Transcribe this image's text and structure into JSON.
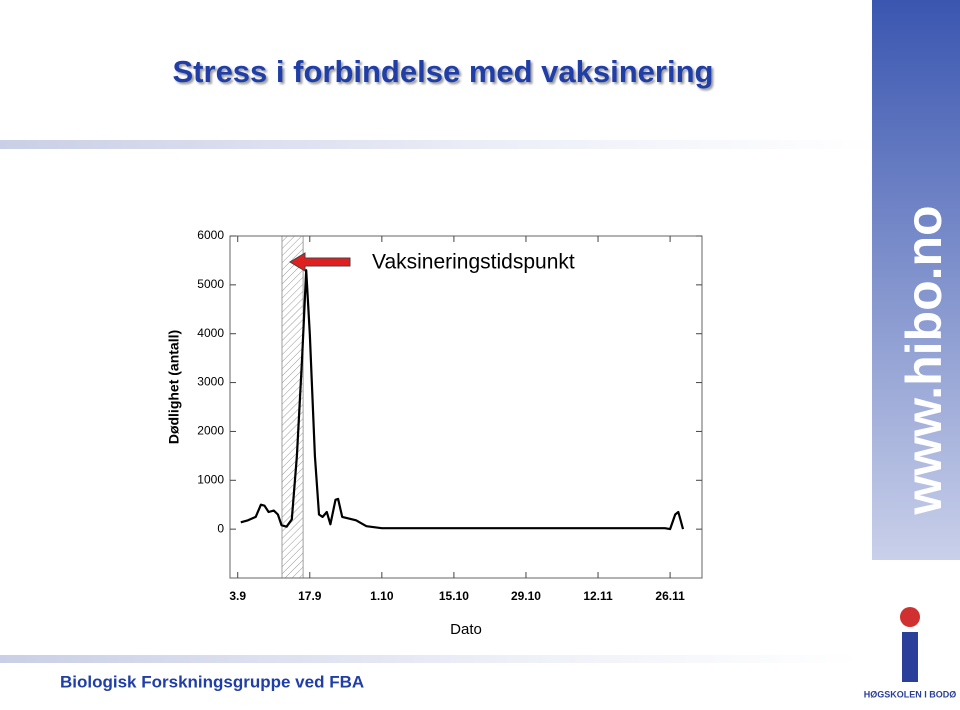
{
  "header": {
    "title": "Stress i forbindelse med vaksinering"
  },
  "banner": {
    "text": "www.hibo.no"
  },
  "logo": {
    "text": "HØGSKOLEN I BODØ"
  },
  "footer": {
    "text": "Biologisk Forskningsgruppe ved FBA"
  },
  "chart_data": {
    "type": "line",
    "ylabel": "Dødlighet (antall)",
    "xlabel": "Dato",
    "annotation": "Vaksineringstidspunkt",
    "shaded_span": [
      8.6,
      12.7
    ],
    "color": "#000000",
    "x": [
      0.6,
      2,
      3.5,
      4.5,
      5.2,
      6,
      7,
      7.8,
      8.5,
      9.5,
      10.5,
      11.5,
      12.5,
      13.3,
      14,
      15,
      15.8,
      16.5,
      17.3,
      18,
      19,
      19.5,
      20.3,
      21.5,
      23,
      25,
      28,
      35,
      42,
      50,
      56,
      63,
      70,
      77,
      83,
      84,
      85,
      85.6,
      86,
      86.5
    ],
    "y": [
      140,
      180,
      250,
      500,
      480,
      350,
      380,
      300,
      80,
      50,
      200,
      1500,
      3500,
      5300,
      4000,
      1500,
      300,
      250,
      350,
      100,
      600,
      620,
      250,
      220,
      180,
      60,
      20,
      20,
      20,
      20,
      20,
      20,
      20,
      20,
      20,
      0,
      300,
      350,
      200,
      0
    ],
    "xlim": [
      -1.5,
      90.2
    ],
    "ylim": [
      -1000,
      6000
    ],
    "xticks": [
      {
        "value": 0,
        "label": "3.9"
      },
      {
        "value": 14,
        "label": "17.9"
      },
      {
        "value": 28,
        "label": "1.10"
      },
      {
        "value": 42,
        "label": "15.10"
      },
      {
        "value": 56,
        "label": "29.10"
      },
      {
        "value": 70,
        "label": "12.11"
      },
      {
        "value": 84,
        "label": "26.11"
      }
    ],
    "yticks": [
      0,
      1000,
      2000,
      3000,
      4000,
      5000,
      6000
    ]
  }
}
